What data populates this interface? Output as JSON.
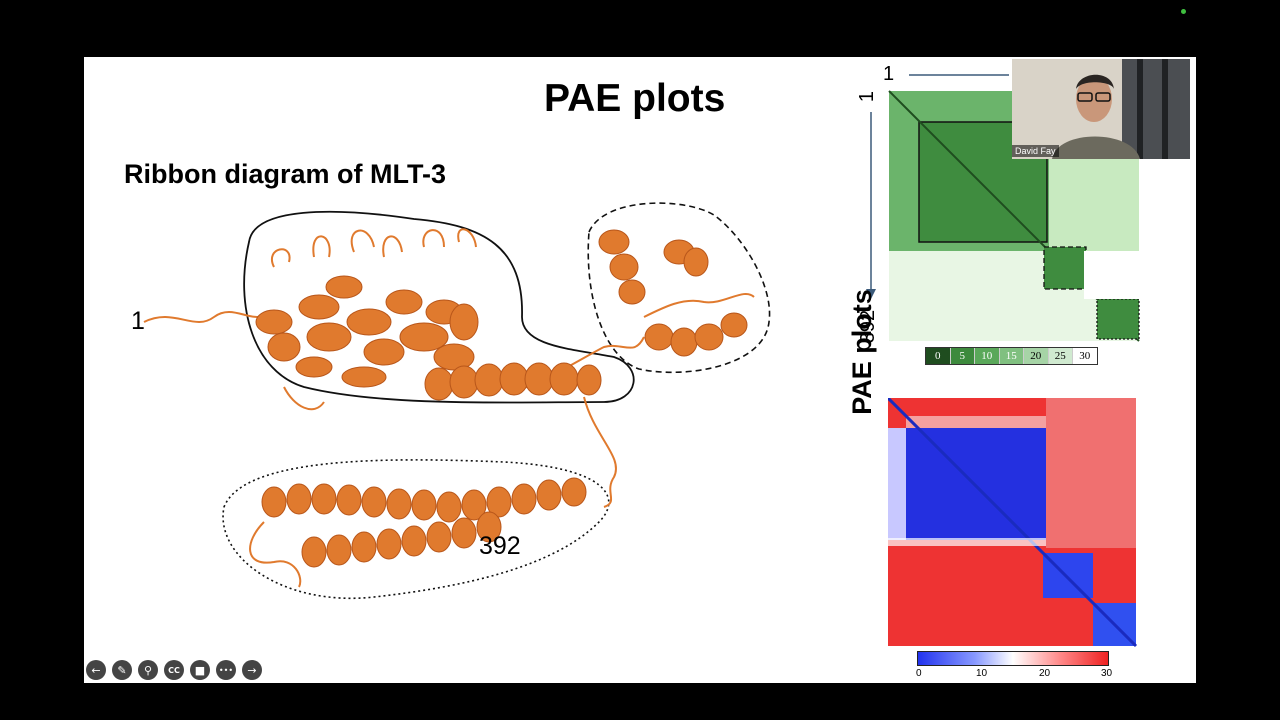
{
  "slide": {
    "title": "PAE plots",
    "subtitle": "Ribbon diagram of MLT-3",
    "ribbon_start_label": "1",
    "ribbon_end_label": "392",
    "pae_vertical_label": "PAE plots",
    "green_plot": {
      "top_label": "1",
      "side_start_label": "1",
      "side_end_label": "392",
      "scale": [
        "0",
        "5",
        "10",
        "15",
        "20",
        "25",
        "30"
      ],
      "scale_colors": [
        "#1f4d1f",
        "#3d8a3d",
        "#5aa85a",
        "#80c080",
        "#a6d4a6",
        "#d0ead0",
        "#ffffff"
      ]
    },
    "red_plot": {
      "scale_ticks": [
        "0",
        "10",
        "20",
        "30"
      ]
    }
  },
  "video": {
    "participant_name": "David Fay"
  },
  "toolbar": {
    "icons": [
      "back-arrow-icon",
      "pen-icon",
      "zoom-icon",
      "captions-icon",
      "camera-icon",
      "more-icon",
      "forward-arrow-icon"
    ],
    "cc_label": "CC",
    "more_label": "•••"
  },
  "colors": {
    "ribbon": "#e07a2e",
    "plot_green_dark": "#2e6b2e",
    "plot_blue": "#2430e0",
    "plot_red": "#ee3333"
  }
}
